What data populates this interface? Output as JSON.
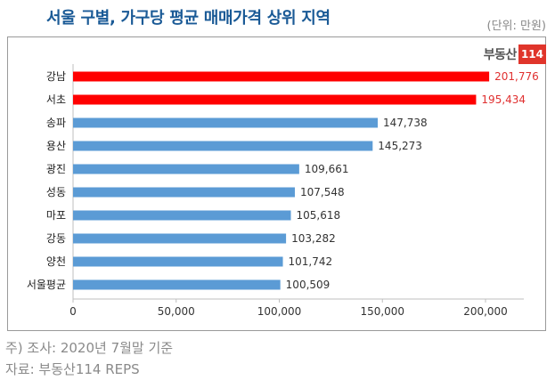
{
  "title": "서울 구별, 가구당 평균 매매가격 상위 지역",
  "unit": "(단위: 만원)",
  "logo": {
    "text": "부동산",
    "number": "114"
  },
  "footnotes": [
    "주) 조사: 2020년 7월말 기준",
    "자료: 부동산114 REPS"
  ],
  "colors": {
    "highlight": "#ff0000",
    "normal": "#5b9bd5",
    "highlight_label": "#e03030",
    "normal_label": "#333333"
  },
  "chart_data": {
    "type": "bar",
    "orientation": "horizontal",
    "categories": [
      "강남",
      "서초",
      "송파",
      "용산",
      "광진",
      "성동",
      "마포",
      "강동",
      "양천",
      "서울평균"
    ],
    "values": [
      201776,
      195434,
      147738,
      145273,
      109661,
      107548,
      105618,
      103282,
      101742,
      100509
    ],
    "value_labels": [
      "201,776",
      "195,434",
      "147,738",
      "145,273",
      "109,661",
      "107,548",
      "105,618",
      "103,282",
      "101,742",
      "100,509"
    ],
    "highlighted": [
      true,
      true,
      false,
      false,
      false,
      false,
      false,
      false,
      false,
      false
    ],
    "xlim": [
      0,
      200000
    ],
    "xticks": [
      0,
      50000,
      100000,
      150000,
      200000
    ],
    "xtick_labels": [
      "0",
      "50,000",
      "100,000",
      "150,000",
      "200,000"
    ],
    "grid": false,
    "legend": "none"
  }
}
